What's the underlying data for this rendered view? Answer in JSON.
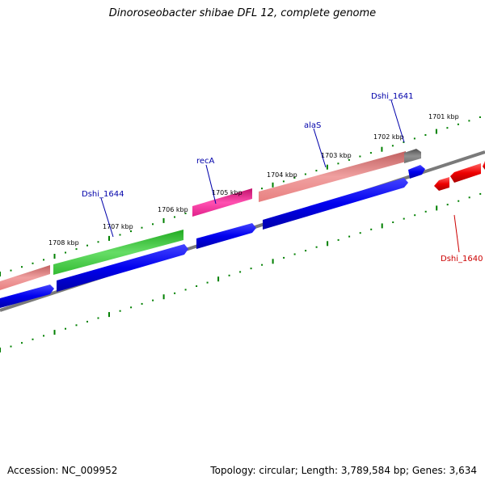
{
  "title": "Dinoroseobacter shibae DFL 12, complete genome",
  "accession": "Accession: NC_009952",
  "stats": "Topology: circular; Length: 3,789,584 bp; Genes: 3,634",
  "colors": {
    "backbone": "#808080",
    "ticks": "#008000",
    "gene_label_forward": "#0000aa",
    "gene_label_reverse": "#cc0000",
    "cds_forward": "#0000ee",
    "cds_reverse": "#ee0000",
    "rrna": "#e88080",
    "green_feature": "#33bb33",
    "magenta_feature": "#e0208a",
    "gray_feature": "#707070"
  },
  "ticks": [
    {
      "label": "1701 kbp"
    },
    {
      "label": "1702 kbp"
    },
    {
      "label": "1703 kbp"
    },
    {
      "label": "1704 kbp"
    },
    {
      "label": "1705 kbp"
    },
    {
      "label": "1706 kbp"
    },
    {
      "label": "1707 kbp"
    },
    {
      "label": "1708 kbp"
    }
  ],
  "gene_labels": [
    {
      "name": "Dshi_1641"
    },
    {
      "name": "alaS"
    },
    {
      "name": "recA"
    },
    {
      "name": "Dshi_1644"
    },
    {
      "name": "Dshi_1640"
    }
  ]
}
